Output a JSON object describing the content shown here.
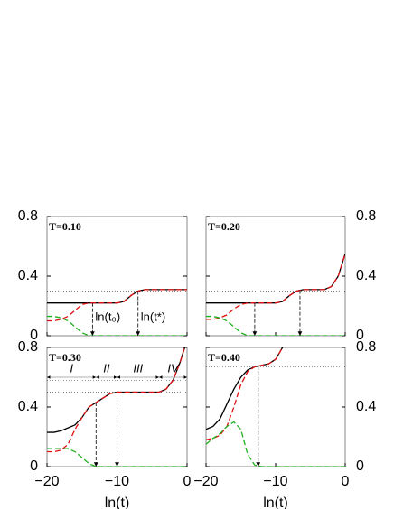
{
  "chart_data": [
    {
      "type": "line",
      "title": "T=0.10",
      "x": [
        -20,
        -19,
        -18,
        -17,
        -16,
        -15,
        -14,
        -13,
        -12,
        -11,
        -10,
        -9,
        -8,
        -7,
        -6,
        -5,
        -4,
        -3,
        -2,
        -1,
        0
      ],
      "series": [
        {
          "color": "#000000",
          "dash": "solid",
          "values": [
            0.22,
            0.22,
            0.22,
            0.22,
            0.22,
            0.22,
            0.22,
            0.22,
            0.22,
            0.22,
            0.22,
            0.23,
            0.27,
            0.3,
            0.31,
            0.31,
            0.31,
            0.31,
            0.31,
            0.31,
            0.31
          ]
        },
        {
          "color": "#e01010",
          "dash": "dashed",
          "values": [
            0.1,
            0.1,
            0.11,
            0.13,
            0.17,
            0.21,
            0.22,
            0.22,
            0.22,
            0.22,
            0.22,
            0.23,
            0.27,
            0.3,
            0.31,
            0.31,
            0.31,
            0.31,
            0.31,
            0.31,
            0.31
          ]
        },
        {
          "color": "#20b020",
          "dash": "dashed",
          "values": [
            0.13,
            0.13,
            0.12,
            0.1,
            0.06,
            0.02,
            0.0,
            0.0,
            0.0,
            0.0,
            0.0,
            0.0,
            0.0,
            0.0,
            0.0,
            0.0,
            0.0,
            0.0,
            0.0,
            0.0,
            0.0
          ]
        }
      ],
      "hlines": [
        0.3
      ],
      "arrows": [
        {
          "x": -13.5,
          "label": "ln(t₀)"
        },
        {
          "x": -7,
          "label": "ln(t*)"
        }
      ],
      "xlim": [
        -20,
        0
      ],
      "ylim": [
        0,
        0.8
      ],
      "xticks": [
        {
          "value": -20,
          "label": "−20"
        },
        {
          "value": -10,
          "label": "−10"
        },
        {
          "value": 0,
          "label": "0"
        }
      ],
      "yticks": [
        0,
        0.4,
        0.8
      ],
      "ytick_side": "left",
      "show_xticklabels": false
    },
    {
      "type": "line",
      "title": "T=0.20",
      "x": [
        -20,
        -19,
        -18,
        -17,
        -16,
        -15,
        -14,
        -13,
        -12,
        -11,
        -10,
        -9,
        -8,
        -7,
        -6,
        -5,
        -4,
        -3,
        -2,
        -1,
        0
      ],
      "series": [
        {
          "color": "#000000",
          "dash": "solid",
          "values": [
            0.22,
            0.22,
            0.22,
            0.22,
            0.22,
            0.22,
            0.22,
            0.22,
            0.22,
            0.22,
            0.22,
            0.23,
            0.27,
            0.3,
            0.31,
            0.31,
            0.31,
            0.31,
            0.33,
            0.4,
            0.55
          ]
        },
        {
          "color": "#e01010",
          "dash": "dashed",
          "values": [
            0.11,
            0.11,
            0.12,
            0.14,
            0.18,
            0.21,
            0.22,
            0.22,
            0.22,
            0.22,
            0.22,
            0.23,
            0.27,
            0.3,
            0.31,
            0.31,
            0.31,
            0.31,
            0.33,
            0.4,
            0.55
          ]
        },
        {
          "color": "#20b020",
          "dash": "dashed",
          "values": [
            0.13,
            0.13,
            0.12,
            0.1,
            0.06,
            0.02,
            0.0,
            0.0,
            0.0,
            0.0,
            0.0,
            0.0,
            0.0,
            0.0,
            0.0,
            0.0,
            0.0,
            0.0,
            0.0,
            0.0,
            0.0
          ]
        }
      ],
      "hlines": [
        0.3
      ],
      "arrows": [
        {
          "x": -13
        },
        {
          "x": -6.5
        }
      ],
      "xlim": [
        -20,
        0
      ],
      "ylim": [
        0,
        0.8
      ],
      "xticks": [
        {
          "value": -20,
          "label": "−20"
        },
        {
          "value": -10,
          "label": "−10"
        },
        {
          "value": 0,
          "label": "0"
        }
      ],
      "yticks": [
        0,
        0.4,
        0.8
      ],
      "ytick_side": "right",
      "show_xticklabels": false
    },
    {
      "type": "line",
      "title": "T=0.30",
      "x": [
        -20,
        -19,
        -18,
        -17,
        -16,
        -15,
        -14,
        -13,
        -12,
        -11,
        -10,
        -9,
        -8,
        -7,
        -6,
        -5,
        -4,
        -3,
        -2,
        -1,
        0
      ],
      "series": [
        {
          "color": "#000000",
          "dash": "solid",
          "values": [
            0.23,
            0.23,
            0.24,
            0.26,
            0.28,
            0.33,
            0.4,
            0.43,
            0.46,
            0.49,
            0.5,
            0.5,
            0.5,
            0.5,
            0.5,
            0.5,
            0.5,
            0.52,
            0.58,
            0.7,
            0.85
          ]
        },
        {
          "color": "#e01010",
          "dash": "dashed",
          "values": [
            0.1,
            0.1,
            0.11,
            0.15,
            0.25,
            0.33,
            0.4,
            0.43,
            0.46,
            0.49,
            0.5,
            0.5,
            0.5,
            0.5,
            0.5,
            0.5,
            0.5,
            0.52,
            0.58,
            0.7,
            0.85
          ]
        },
        {
          "color": "#20b020",
          "dash": "dashed",
          "values": [
            0.12,
            0.12,
            0.12,
            0.12,
            0.1,
            0.06,
            0.02,
            0.0,
            0.0,
            0.0,
            0.0,
            0.0,
            0.0,
            0.0,
            0.0,
            0.0,
            0.0,
            0.0,
            0.0,
            0.0,
            0.0
          ]
        }
      ],
      "hlines": [
        0.5,
        0.58
      ],
      "arrows": [
        {
          "x": -13
        },
        {
          "x": -10
        }
      ],
      "regions": [
        {
          "label": "I",
          "from": -20,
          "to": -13
        },
        {
          "label": "II",
          "from": -13,
          "to": -10
        },
        {
          "label": "III",
          "from": -10,
          "to": -4
        },
        {
          "label": "IV",
          "from": -4,
          "to": 0
        }
      ],
      "region_y": 0.6,
      "xlim": [
        -20,
        0
      ],
      "ylim": [
        0,
        0.8
      ],
      "xticks": [
        {
          "value": -20,
          "label": "−20"
        },
        {
          "value": -10,
          "label": "−10"
        },
        {
          "value": 0,
          "label": "0"
        }
      ],
      "yticks": [
        0,
        0.4,
        0.8
      ],
      "ytick_side": "left",
      "show_xticklabels": true,
      "xlabel": "ln(t)"
    },
    {
      "type": "line",
      "title": "T=0.40",
      "x": [
        -20,
        -19,
        -18,
        -17,
        -16,
        -15,
        -14,
        -13,
        -12,
        -11,
        -10,
        -9,
        -8,
        -7,
        -6,
        -5,
        -4,
        -3,
        -2,
        -1,
        0
      ],
      "series": [
        {
          "color": "#000000",
          "dash": "solid",
          "values": [
            0.25,
            0.27,
            0.32,
            0.42,
            0.52,
            0.6,
            0.65,
            0.67,
            0.68,
            0.69,
            0.72,
            0.8,
            0.9,
            null,
            null,
            null,
            null,
            null,
            null,
            null,
            null
          ]
        },
        {
          "color": "#e01010",
          "dash": "dashed",
          "values": [
            0.18,
            0.19,
            0.21,
            0.27,
            0.4,
            0.55,
            0.64,
            0.67,
            0.68,
            0.69,
            0.72,
            0.8,
            0.9,
            null,
            null,
            null,
            null,
            null,
            null,
            null,
            null
          ]
        },
        {
          "color": "#20b020",
          "dash": "dashed",
          "values": [
            0.15,
            0.19,
            0.22,
            0.27,
            0.3,
            0.25,
            0.08,
            0.01,
            0.0,
            0.0,
            0.0,
            0.0,
            0.0,
            0.0,
            0.0,
            0.0,
            0.0,
            0.0,
            0.0,
            0.0,
            0.0
          ]
        }
      ],
      "hlines": [
        0.67
      ],
      "arrows": [
        {
          "x": -12.5
        }
      ],
      "xlim": [
        -20,
        0
      ],
      "ylim": [
        0,
        0.8
      ],
      "xticks": [
        {
          "value": -20,
          "label": "−20"
        },
        {
          "value": -10,
          "label": "−10"
        },
        {
          "value": 0,
          "label": "0"
        }
      ],
      "yticks": [
        0,
        0.4,
        0.8
      ],
      "ytick_side": "right",
      "show_xticklabels": true,
      "xlabel": "ln(t)"
    }
  ]
}
